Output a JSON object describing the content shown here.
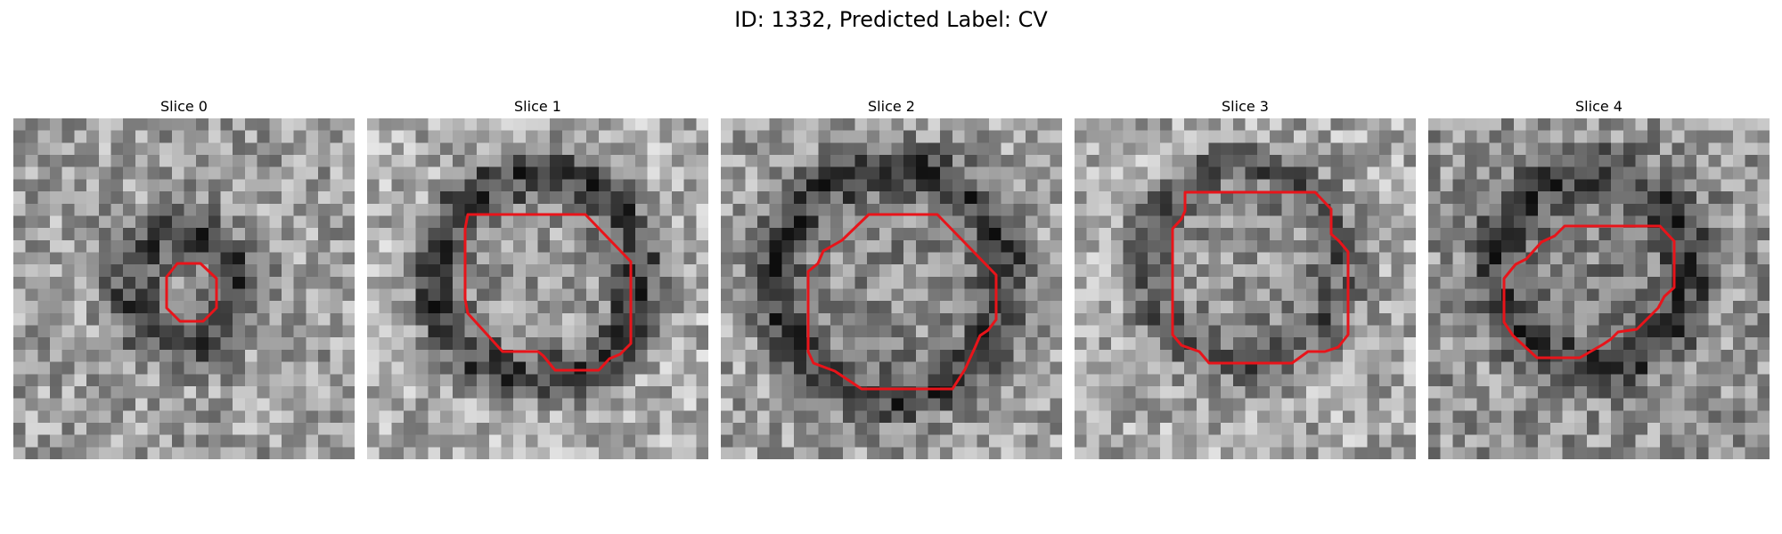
{
  "title": "ID: 1332, Predicted Label: CV",
  "slices": [
    {
      "label": "Slice 0"
    },
    {
      "label": "Slice 1"
    },
    {
      "label": "Slice 2"
    },
    {
      "label": "Slice 3"
    },
    {
      "label": "Slice 4"
    }
  ],
  "contour_color": "#e8141a"
}
